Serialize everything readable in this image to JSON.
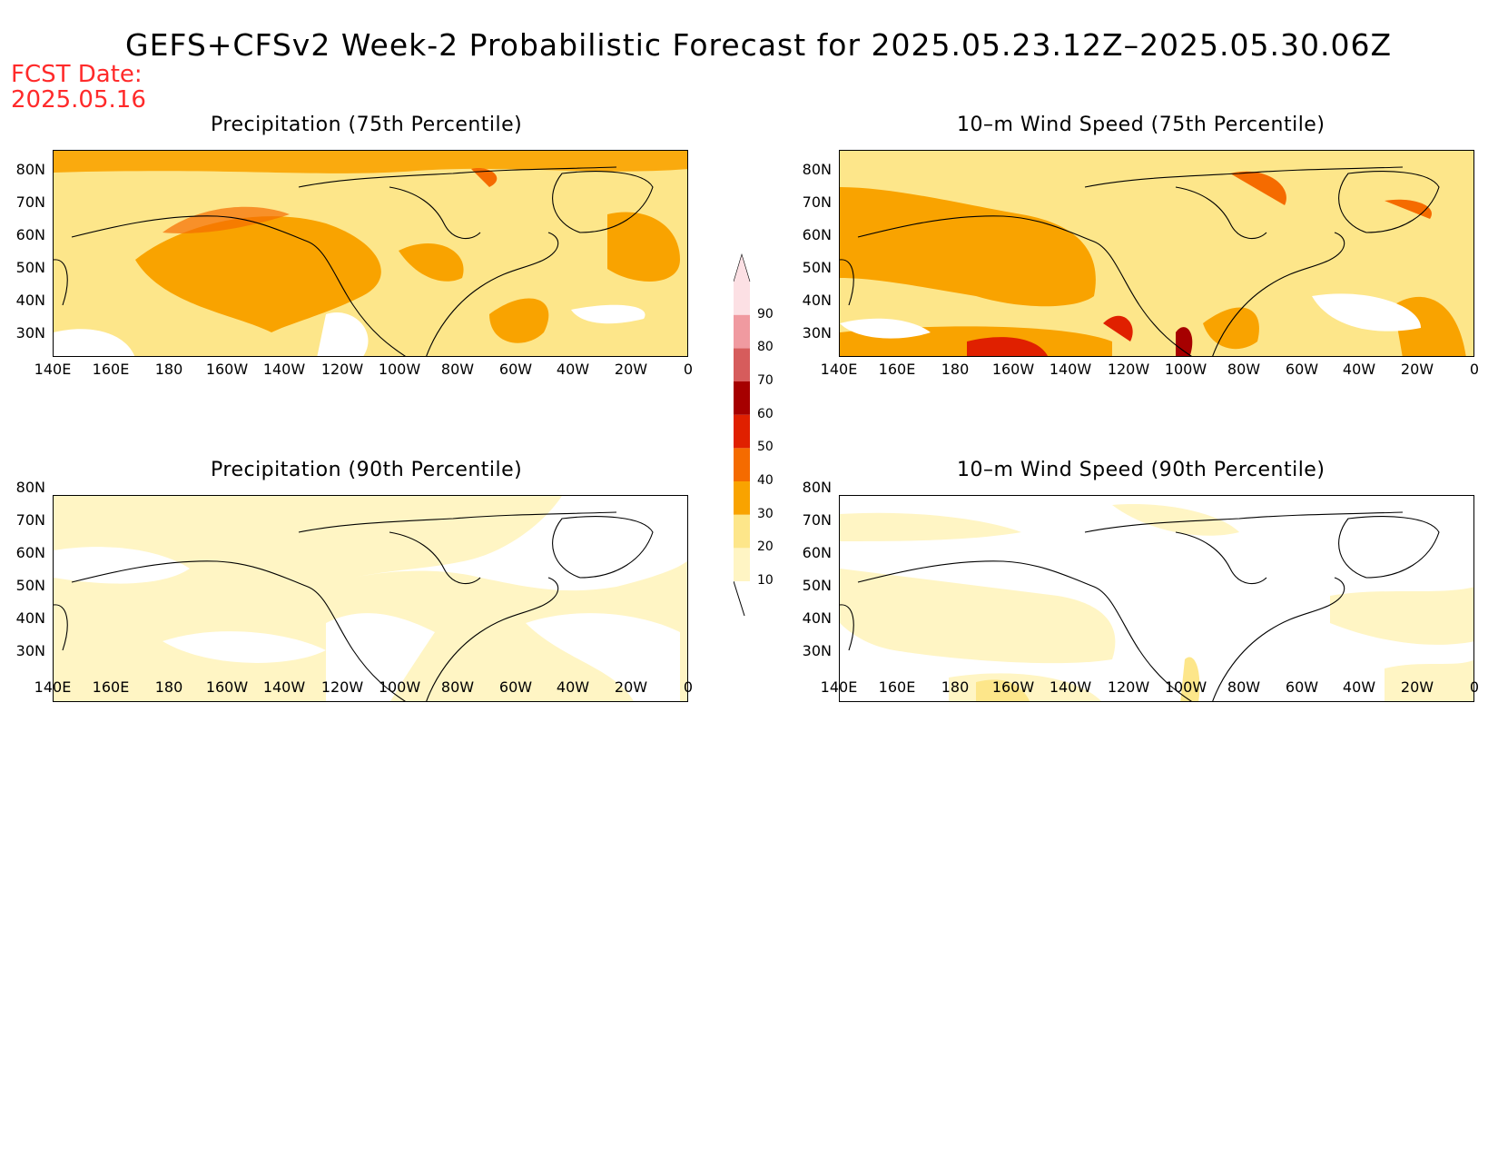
{
  "title": "GEFS+CFSv2 Week-2 Probabilistic Forecast for 2025.05.23.12Z–2025.05.30.06Z",
  "fcst_date": {
    "label": "FCST Date:",
    "value": "2025.05.16"
  },
  "lat_labels": [
    "80N",
    "70N",
    "60N",
    "50N",
    "40N",
    "30N"
  ],
  "lon_labels": [
    "140E",
    "160E",
    "180",
    "160W",
    "140W",
    "120W",
    "100W",
    "80W",
    "60W",
    "40W",
    "20W",
    "0"
  ],
  "panels": [
    {
      "id": "precip75",
      "title": "Precipitation (75th Percentile)",
      "base": "#fde894"
    },
    {
      "id": "wind75",
      "title": "10–m Wind Speed (75th Percentile)",
      "base": "#fde894"
    },
    {
      "id": "precip90",
      "title": "Precipitation (90th Percentile)",
      "base": "#fef6c8"
    },
    {
      "id": "wind90",
      "title": "10–m Wind Speed (90th Percentile)",
      "base": "#fef6c8"
    }
  ],
  "colorbar": {
    "levels": [
      "10",
      "20",
      "30",
      "40",
      "50",
      "60",
      "70",
      "80",
      "90"
    ],
    "colors": [
      "#fff5c4",
      "#fde68a",
      "#f9a300",
      "#f56b00",
      "#e02000",
      "#a60000",
      "#d65c5c",
      "#f09aa0",
      "#fce0e4"
    ]
  },
  "palette": {
    "light": "#fff5c4",
    "yellow": "#fde68a",
    "orange": "#f9a300",
    "dark_orange": "#f56b00",
    "red": "#e02000",
    "dark_red": "#a60000"
  }
}
